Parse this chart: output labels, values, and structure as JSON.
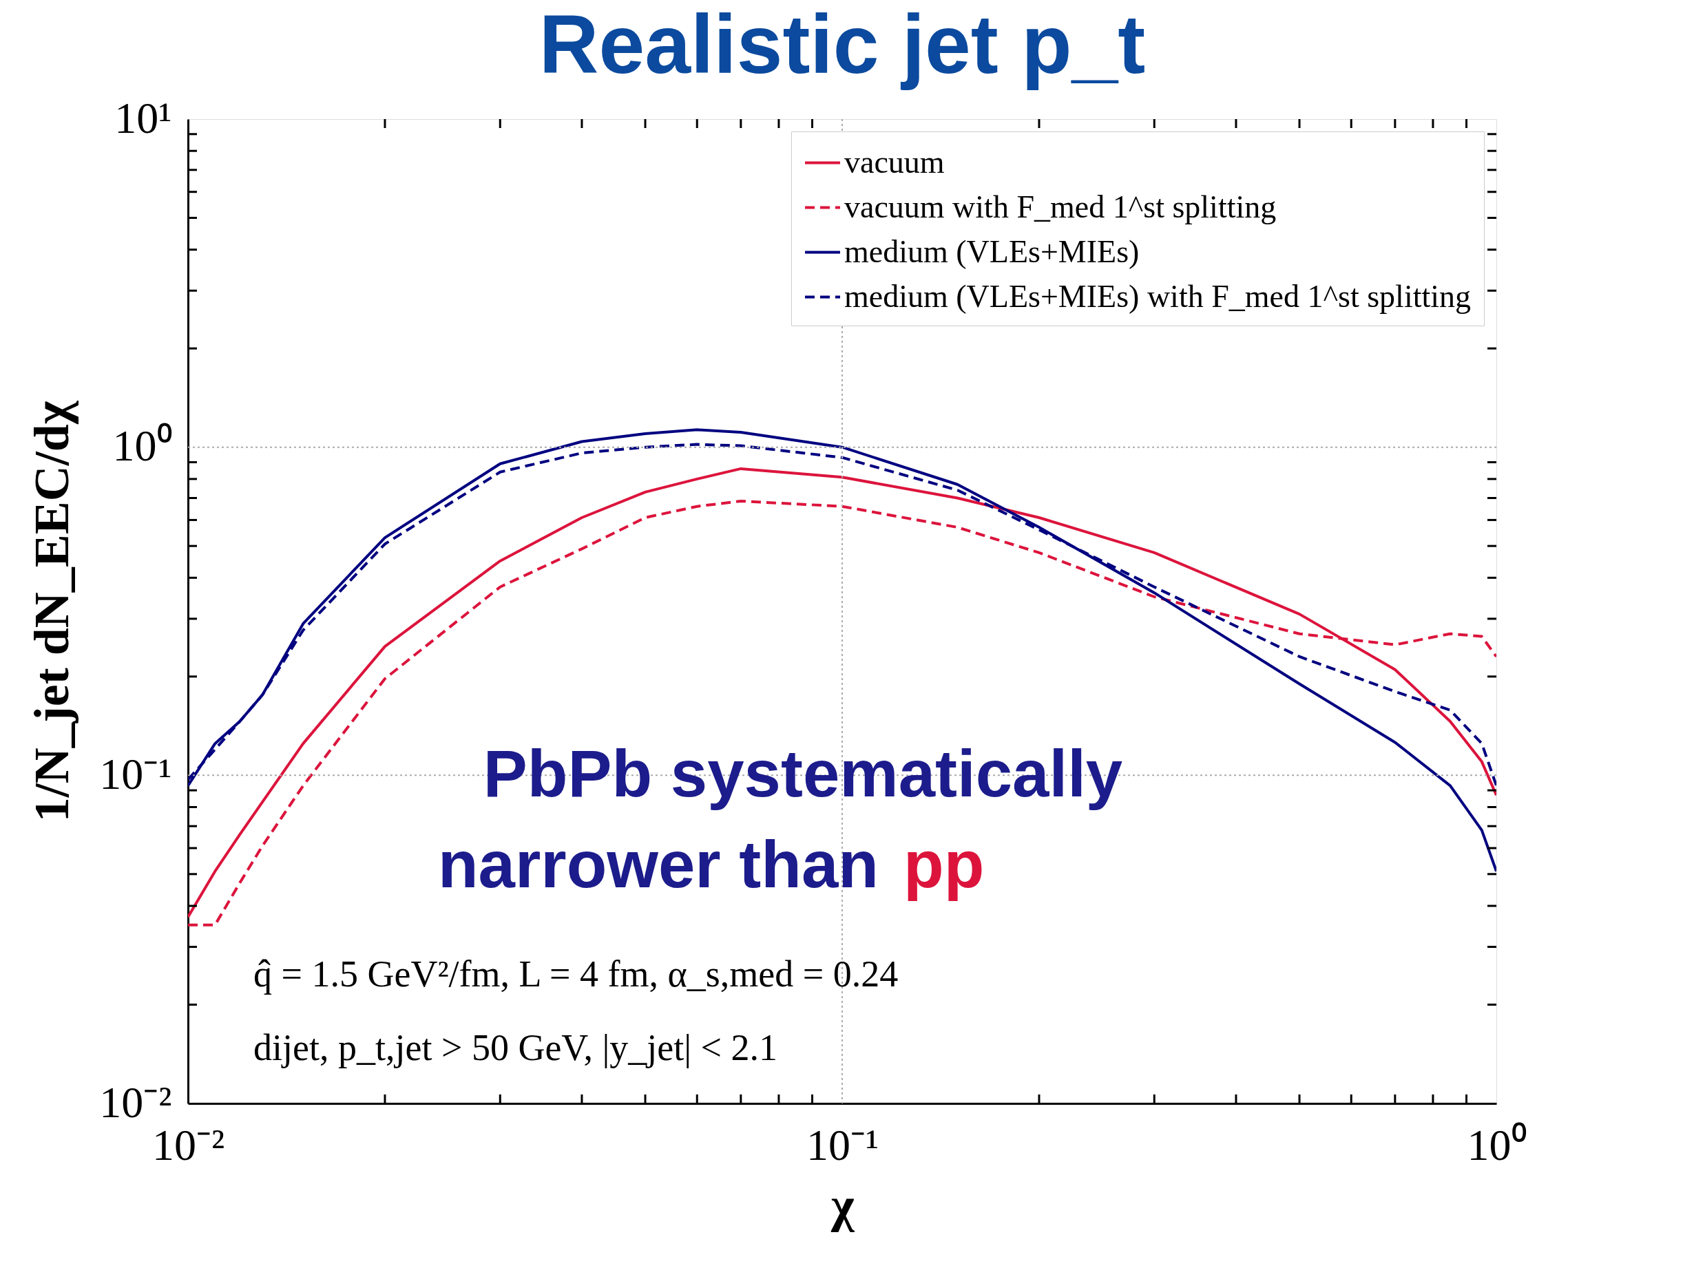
{
  "chart_data": {
    "type": "line",
    "title": "Realistic jet p_t",
    "xlabel": "χ",
    "ylabel": "1/N_jet dN_EEC/dχ",
    "log": "xy",
    "grid": true,
    "legend": "top right",
    "xlim": [
      0.01,
      1
    ],
    "ylim": [
      0.01,
      10
    ],
    "xticks": [
      {
        "value": 0.01,
        "label": "10⁻²"
      },
      {
        "value": 0.02,
        "label": null
      },
      {
        "value": 0.03,
        "label": null
      },
      {
        "value": 0.04,
        "label": null
      },
      {
        "value": 0.05,
        "label": null
      },
      {
        "value": 0.06,
        "label": null
      },
      {
        "value": 0.07,
        "label": null
      },
      {
        "value": 0.08,
        "label": null
      },
      {
        "value": 0.09,
        "label": null
      },
      {
        "value": 0.1,
        "label": "10⁻¹"
      },
      {
        "value": 0.2,
        "label": null
      },
      {
        "value": 0.3,
        "label": null
      },
      {
        "value": 0.4,
        "label": null
      },
      {
        "value": 0.5,
        "label": null
      },
      {
        "value": 0.6,
        "label": null
      },
      {
        "value": 0.7,
        "label": null
      },
      {
        "value": 0.8,
        "label": null
      },
      {
        "value": 0.9,
        "label": null
      },
      {
        "value": 1,
        "label": "10⁰"
      }
    ],
    "yticks": [
      {
        "value": 0.01,
        "label": "10⁻²"
      },
      {
        "value": 0.02,
        "label": null
      },
      {
        "value": 0.03,
        "label": null
      },
      {
        "value": 0.04,
        "label": null
      },
      {
        "value": 0.05,
        "label": null
      },
      {
        "value": 0.06,
        "label": null
      },
      {
        "value": 0.07,
        "label": null
      },
      {
        "value": 0.08,
        "label": null
      },
      {
        "value": 0.09,
        "label": null
      },
      {
        "value": 0.1,
        "label": "10⁻¹"
      },
      {
        "value": 0.2,
        "label": null
      },
      {
        "value": 0.3,
        "label": null
      },
      {
        "value": 0.4,
        "label": null
      },
      {
        "value": 0.5,
        "label": null
      },
      {
        "value": 0.6,
        "label": null
      },
      {
        "value": 0.7,
        "label": null
      },
      {
        "value": 0.8,
        "label": null
      },
      {
        "value": 0.9,
        "label": null
      },
      {
        "value": 1,
        "label": "10⁰"
      },
      {
        "value": 2,
        "label": null
      },
      {
        "value": 3,
        "label": null
      },
      {
        "value": 4,
        "label": null
      },
      {
        "value": 5,
        "label": null
      },
      {
        "value": 6,
        "label": null
      },
      {
        "value": 7,
        "label": null
      },
      {
        "value": 8,
        "label": null
      },
      {
        "value": 9,
        "label": null
      },
      {
        "value": 10,
        "label": "10¹"
      }
    ],
    "x": [
      0.01,
      0.011,
      0.012,
      0.013,
      0.015,
      0.02,
      0.03,
      0.04,
      0.05,
      0.06,
      0.07,
      0.1,
      0.15,
      0.2,
      0.3,
      0.5,
      0.7,
      0.85,
      0.95,
      1.0
    ],
    "series": [
      {
        "name": "vacuum",
        "color": "#dc143c",
        "line_style": "solid",
        "values": [
          0.037,
          0.051,
          0.066,
          0.083,
          0.125,
          0.247,
          0.45,
          0.61,
          0.73,
          0.8,
          0.86,
          0.81,
          0.7,
          0.61,
          0.477,
          0.31,
          0.21,
          0.146,
          0.11,
          0.087
        ]
      },
      {
        "name": "vacuum with F_med 1^st splitting",
        "color": "#dc143c",
        "line_style": "dashed",
        "values": [
          0.035,
          0.035,
          0.047,
          0.061,
          0.093,
          0.197,
          0.375,
          0.49,
          0.61,
          0.66,
          0.685,
          0.66,
          0.57,
          0.477,
          0.35,
          0.27,
          0.25,
          0.27,
          0.265,
          0.23
        ]
      },
      {
        "name": "medium (VLEs+MIEs)",
        "color": "#000080",
        "line_style": "solid",
        "values": [
          0.093,
          0.125,
          0.146,
          0.176,
          0.29,
          0.53,
          0.89,
          1.04,
          1.1,
          1.13,
          1.11,
          1.0,
          0.77,
          0.57,
          0.36,
          0.19,
          0.126,
          0.093,
          0.068,
          0.051
        ]
      },
      {
        "name": "medium (VLEs+MIEs) with F_med 1^st splitting",
        "color": "#000080",
        "line_style": "dashed",
        "values": [
          0.097,
          0.12,
          0.146,
          0.176,
          0.277,
          0.507,
          0.84,
          0.96,
          1.0,
          1.02,
          1.01,
          0.93,
          0.74,
          0.56,
          0.375,
          0.23,
          0.18,
          0.158,
          0.125,
          0.093
        ]
      }
    ],
    "annotations": [
      "PbPb systematically",
      "narrower than pp",
      "q̂ = 1.5 GeV²/fm, L = 4 fm, α_s,med = 0.24",
      "dijet, p_t,jet > 50 GeV, |y_jet| < 2.1"
    ]
  }
}
